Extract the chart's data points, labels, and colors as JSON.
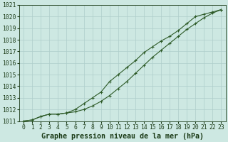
{
  "xlabel": "Graphe pression niveau de la mer (hPa)",
  "x": [
    0,
    1,
    2,
    3,
    4,
    5,
    6,
    7,
    8,
    9,
    10,
    11,
    12,
    13,
    14,
    15,
    16,
    17,
    18,
    19,
    20,
    21,
    22,
    23
  ],
  "line1": [
    1011.0,
    1011.1,
    1011.4,
    1011.6,
    1011.6,
    1011.7,
    1011.8,
    1012.0,
    1012.3,
    1012.7,
    1013.2,
    1013.8,
    1014.4,
    1015.1,
    1015.8,
    1016.5,
    1017.1,
    1017.7,
    1018.3,
    1018.9,
    1019.4,
    1019.9,
    1020.3,
    1020.6
  ],
  "line2": [
    1011.0,
    1011.1,
    1011.4,
    1011.6,
    1011.6,
    1011.7,
    1012.0,
    1012.5,
    1013.0,
    1013.5,
    1014.4,
    1015.0,
    1015.6,
    1016.2,
    1016.9,
    1017.4,
    1017.9,
    1018.3,
    1018.8,
    1019.4,
    1020.0,
    1020.2,
    1020.4,
    1020.6
  ],
  "line_color": "#2d5a27",
  "bg_color": "#cde8e2",
  "grid_color": "#aececa",
  "text_color": "#1a3a16",
  "ylim_min": 1011,
  "ylim_max": 1021,
  "yticks": [
    1011,
    1012,
    1013,
    1014,
    1015,
    1016,
    1017,
    1018,
    1019,
    1020,
    1021
  ],
  "xticks": [
    0,
    1,
    2,
    3,
    4,
    5,
    6,
    7,
    8,
    9,
    10,
    11,
    12,
    13,
    14,
    15,
    16,
    17,
    18,
    19,
    20,
    21,
    22,
    23
  ],
  "tick_fontsize": 5.8,
  "xlabel_fontsize": 7.2
}
